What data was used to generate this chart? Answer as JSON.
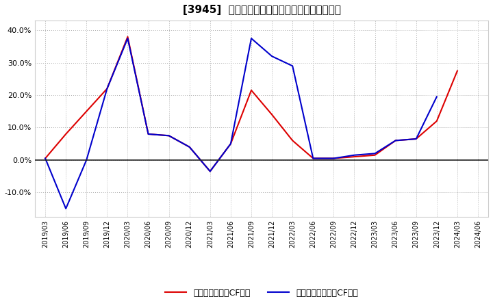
{
  "title": "[3945]  有利子負債キャッシュフロー比率の推移",
  "legend_red": "有利子負債営業CF比率",
  "legend_blue": "有利子負債フリーCF比率",
  "x_labels": [
    "2019/03",
    "2019/06",
    "2019/09",
    "2019/12",
    "2020/03",
    "2020/06",
    "2020/09",
    "2020/12",
    "2021/03",
    "2021/06",
    "2021/09",
    "2021/12",
    "2022/03",
    "2022/06",
    "2022/09",
    "2022/12",
    "2023/03",
    "2023/06",
    "2023/09",
    "2023/12",
    "2024/03",
    "2024/06"
  ],
  "red_values": [
    0.5,
    8.0,
    15.0,
    22.0,
    38.0,
    8.0,
    7.5,
    4.0,
    -3.5,
    5.0,
    21.5,
    14.0,
    6.0,
    0.5,
    0.5,
    1.0,
    1.5,
    6.0,
    6.5,
    12.0,
    27.5,
    null
  ],
  "blue_values": [
    0.5,
    -15.0,
    0.0,
    22.0,
    37.5,
    8.0,
    7.5,
    4.0,
    -3.5,
    5.0,
    37.5,
    32.0,
    29.0,
    0.5,
    0.5,
    1.5,
    2.0,
    6.0,
    6.5,
    19.5,
    null,
    null
  ],
  "ylim": [
    -17.5,
    43
  ],
  "yticks": [
    -10.0,
    0.0,
    10.0,
    20.0,
    30.0,
    40.0
  ],
  "background_color": "#ffffff",
  "plot_bg_color": "#ffffff",
  "grid_color": "#aaaaaa",
  "red_color": "#dd0000",
  "blue_color": "#0000cc",
  "zero_line_color": "#222222"
}
